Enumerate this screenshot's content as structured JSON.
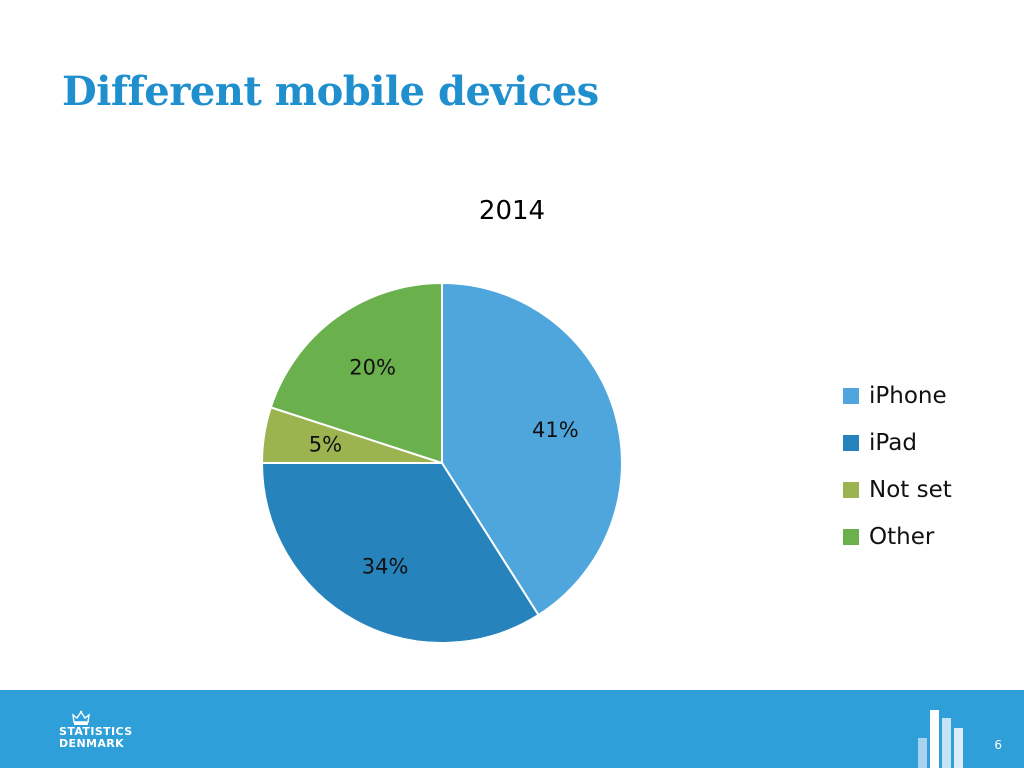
{
  "slide": {
    "title": "Different mobile devices",
    "page_number": "6"
  },
  "footer": {
    "logo_line1": "STATISTICS",
    "logo_line2": "DENMARK",
    "background_color": "#2e9fd9",
    "icons": [
      "crown-icon",
      "bars-chart-icon"
    ]
  },
  "chart_data": {
    "type": "pie",
    "title": "2014",
    "categories": [
      "iPhone",
      "iPad",
      "Not set",
      "Other"
    ],
    "values": [
      41,
      34,
      5,
      20
    ],
    "labels": [
      "41%",
      "34%",
      "5%",
      "20%"
    ],
    "colors": [
      "#4ea6dc",
      "#2683bb",
      "#9bb450",
      "#6ab04c"
    ],
    "start_angle_deg": 0,
    "direction": "clockwise",
    "legend": {
      "position": "right"
    }
  }
}
